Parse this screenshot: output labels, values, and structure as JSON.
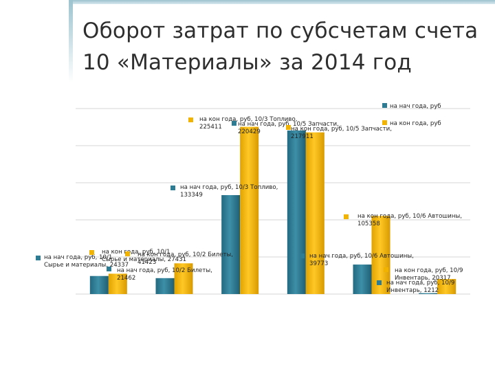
{
  "title": "Оборот затрат по субсчетам счета 10 «Материалы» за 2014 год",
  "colors": {
    "nach": "#2e7c93",
    "kon": "#f2b200",
    "grid": "#d6d6d6",
    "text": "#222222"
  },
  "chart_data": {
    "type": "bar",
    "title": "Оборот затрат по субсчетам счета 10 «Материалы» за 2014 год",
    "categories": [
      "10/1 Сырье и материалы",
      "10/2 Билеты",
      "10/3 Топливо",
      "10/5 Запчасти",
      "10/6 Автошины",
      "10/9 Инвентарь"
    ],
    "series": [
      {
        "name": "на нач года, руб",
        "values": [
          24337,
          21462,
          133349,
          220429,
          39773,
          1212
        ]
      },
      {
        "name": "на кон года, руб",
        "values": [
          27431,
          41423,
          225411,
          217911,
          105358,
          20317
        ]
      }
    ],
    "ylim": [
      0,
      250000
    ],
    "grid": true,
    "legend": "top-right",
    "data_labels": [
      {
        "text": "на нач года, руб, 10/1 Сырье и материалы, 24337",
        "lines": [
          "на нач года, руб, 10/1",
          "Сырье и материалы, 24337"
        ]
      },
      {
        "text": "на кон года, руб, 10/1 Сырье и материалы, 27431",
        "lines": [
          "на кон года, руб, 10/1",
          "Сырье и материалы, 27431"
        ]
      },
      {
        "text": "на нач года, руб, 10/2 Билеты, 21462",
        "lines": [
          "на нач года, руб, 10/2 Билеты,",
          "21462"
        ]
      },
      {
        "text": "на кон года, руб, 10/2 Билеты, 41423",
        "lines": [
          "на кон года, руб, 10/2 Билеты,",
          "41423"
        ]
      },
      {
        "text": "на нач года, руб, 10/3 Топливо, 133349",
        "lines": [
          "на нач года, руб, 10/3 Топливо,",
          "133349"
        ]
      },
      {
        "text": "на кон года, руб, 10/3 Топливо, 225411",
        "lines": [
          "на кон года, руб, 10/3 Топливо,",
          "225411"
        ]
      },
      {
        "text": "на нач года, руб, 10/5 Запчасти, 220429",
        "lines": [
          "на нач года, руб, 10/5 Запчасти,",
          "220429"
        ]
      },
      {
        "text": "на кон года, руб, 10/5 Запчасти, 217911",
        "lines": [
          "на кон года, руб, 10/5 Запчасти,",
          "217911"
        ]
      },
      {
        "text": "на нач года, руб, 10/6 Автошины, 39773",
        "lines": [
          "на нач года, руб, 10/6 Автошины,",
          "39773"
        ]
      },
      {
        "text": "на кон года, руб, 10/6 Автошины, 105358",
        "lines": [
          "на кон года, руб, 10/6 Автошины,",
          "105358"
        ]
      },
      {
        "text": "на кон года, руб, 10/9 Инвентарь, 20317",
        "lines": [
          "на кон года, руб, 10/9",
          "Инвентарь, 20317"
        ]
      },
      {
        "text": "на нач года, руб, 10/9 Инвентарь, 1212",
        "lines": [
          "на нач года, руб, 10/9",
          "Инвентарь, 1212"
        ]
      }
    ]
  }
}
